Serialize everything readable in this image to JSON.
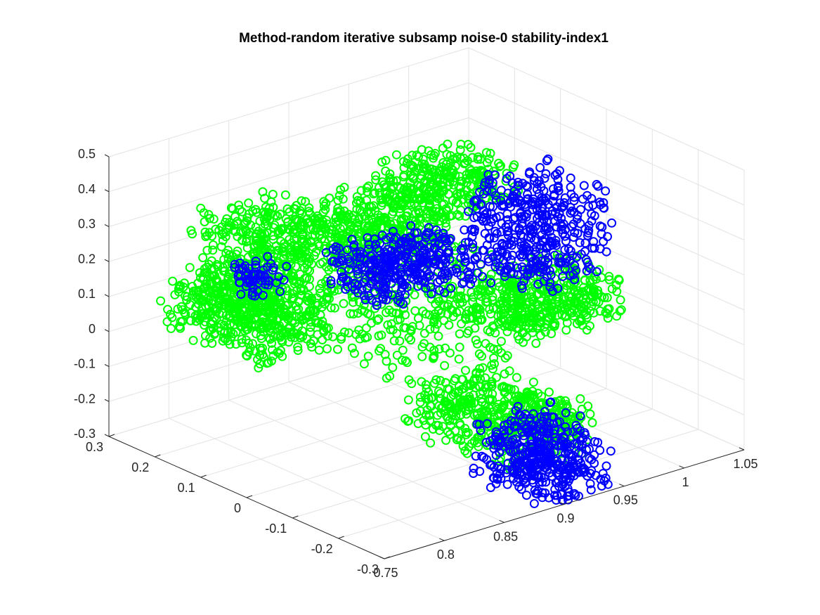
{
  "chart_data": {
    "type": "scatter",
    "title": "Method-random iterative subsamp noise-0 stability-index1",
    "xlabel": "",
    "ylabel": "",
    "zlabel": "",
    "xlim": [
      0.75,
      1.05
    ],
    "ylim": [
      -0.3,
      0.3
    ],
    "zlim": [
      -0.3,
      0.5
    ],
    "x_ticks": [
      "0.75",
      "0.8",
      "0.85",
      "0.9",
      "0.95",
      "1",
      "1.05"
    ],
    "y_ticks": [
      "-0.3",
      "-0.2",
      "-0.1",
      "0",
      "0.1",
      "0.2",
      "0.3"
    ],
    "z_ticks": [
      "-0.3",
      "-0.2",
      "-0.1",
      "0",
      "0.1",
      "0.2",
      "0.3",
      "0.4",
      "0.5"
    ],
    "grid": true,
    "marker": "circle",
    "series": [
      {
        "color": "#00ff00",
        "regions": [
          {
            "x": [
              0.78,
              0.84
            ],
            "y": [
              0.05,
              0.28
            ],
            "z": [
              0.0,
              0.14
            ]
          },
          {
            "x": [
              0.8,
              0.87
            ],
            "y": [
              0.12,
              0.26
            ],
            "z": [
              0.05,
              0.32
            ]
          },
          {
            "x": [
              0.84,
              0.98
            ],
            "y": [
              -0.1,
              0.24
            ],
            "z": [
              -0.05,
              0.14
            ]
          },
          {
            "x": [
              0.86,
              0.95
            ],
            "y": [
              0.05,
              0.22
            ],
            "z": [
              0.16,
              0.3
            ]
          },
          {
            "x": [
              0.93,
              1.0
            ],
            "y": [
              0.05,
              0.2
            ],
            "z": [
              0.25,
              0.36
            ]
          },
          {
            "x": [
              0.95,
              1.03
            ],
            "y": [
              -0.1,
              0.05
            ],
            "z": [
              -0.02,
              0.1
            ]
          },
          {
            "x": [
              0.86,
              0.93
            ],
            "y": [
              -0.28,
              -0.05
            ],
            "z": [
              -0.2,
              -0.05
            ]
          },
          {
            "x": [
              0.92,
              0.95
            ],
            "y": [
              -0.24,
              -0.12
            ],
            "z": [
              -0.2,
              -0.1
            ]
          }
        ]
      },
      {
        "color": "#0000ff",
        "regions": [
          {
            "x": [
              0.81,
              0.84
            ],
            "y": [
              0.14,
              0.2
            ],
            "z": [
              0.11,
              0.19
            ]
          },
          {
            "x": [
              0.86,
              0.94
            ],
            "y": [
              -0.02,
              0.12
            ],
            "z": [
              0.12,
              0.24
            ]
          },
          {
            "x": [
              0.97,
              1.04
            ],
            "y": [
              -0.05,
              0.12
            ],
            "z": [
              0.05,
              0.32
            ]
          },
          {
            "x": [
              0.88,
              0.94
            ],
            "y": [
              -0.3,
              -0.15
            ],
            "z": [
              -0.3,
              -0.12
            ]
          }
        ]
      }
    ]
  }
}
